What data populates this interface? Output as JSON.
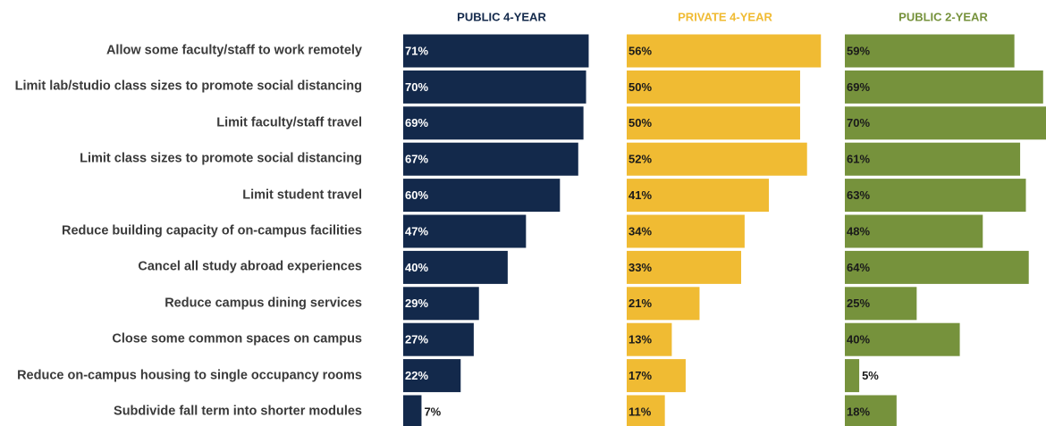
{
  "chart_data": {
    "type": "bar",
    "categories": [
      "Allow some faculty/staff to work remotely",
      "Limit lab/studio class sizes to promote social distancing",
      "Limit faculty/staff travel",
      "Limit class sizes to promote social distancing",
      "Limit student travel",
      "Reduce building capacity of on-campus facilities",
      "Cancel all study abroad experiences",
      "Reduce campus dining services",
      "Close some common spaces on campus",
      "Reduce on-campus housing to single occupancy rooms",
      "Subdivide fall term into shorter modules"
    ],
    "series": [
      {
        "name": "PUBLIC 4-YEAR",
        "color": "#13294b",
        "label_color": "#ffffff",
        "xlim": [
          0,
          77
        ],
        "values": [
          71,
          70,
          69,
          67,
          60,
          47,
          40,
          29,
          27,
          22,
          7
        ],
        "value_labels": [
          "71%",
          "70%",
          "69%",
          "67%",
          "60%",
          "47%",
          "40%",
          "29%",
          "27%",
          "22%",
          "7%"
        ]
      },
      {
        "name": "PRIVATE 4-YEAR",
        "color": "#f0bb33",
        "label_color": "#1a1a1a",
        "xlim": [
          0,
          58
        ],
        "values": [
          56,
          50,
          50,
          52,
          41,
          34,
          33,
          21,
          13,
          17,
          11
        ],
        "value_labels": [
          "56%",
          "50%",
          "50%",
          "52%",
          "41%",
          "34%",
          "33%",
          "21%",
          "13%",
          "17%",
          "11%"
        ]
      },
      {
        "name": "PUBLIC 2-YEAR",
        "color": "#76923c",
        "label_color": "#1a1a1a",
        "xlim": [
          0,
          70
        ],
        "values": [
          59,
          69,
          70,
          61,
          63,
          48,
          64,
          25,
          40,
          5,
          18
        ],
        "value_labels": [
          "59%",
          "69%",
          "70%",
          "61%",
          "63%",
          "48%",
          "64%",
          "25%",
          "40%",
          "5%",
          "18%"
        ]
      }
    ]
  }
}
